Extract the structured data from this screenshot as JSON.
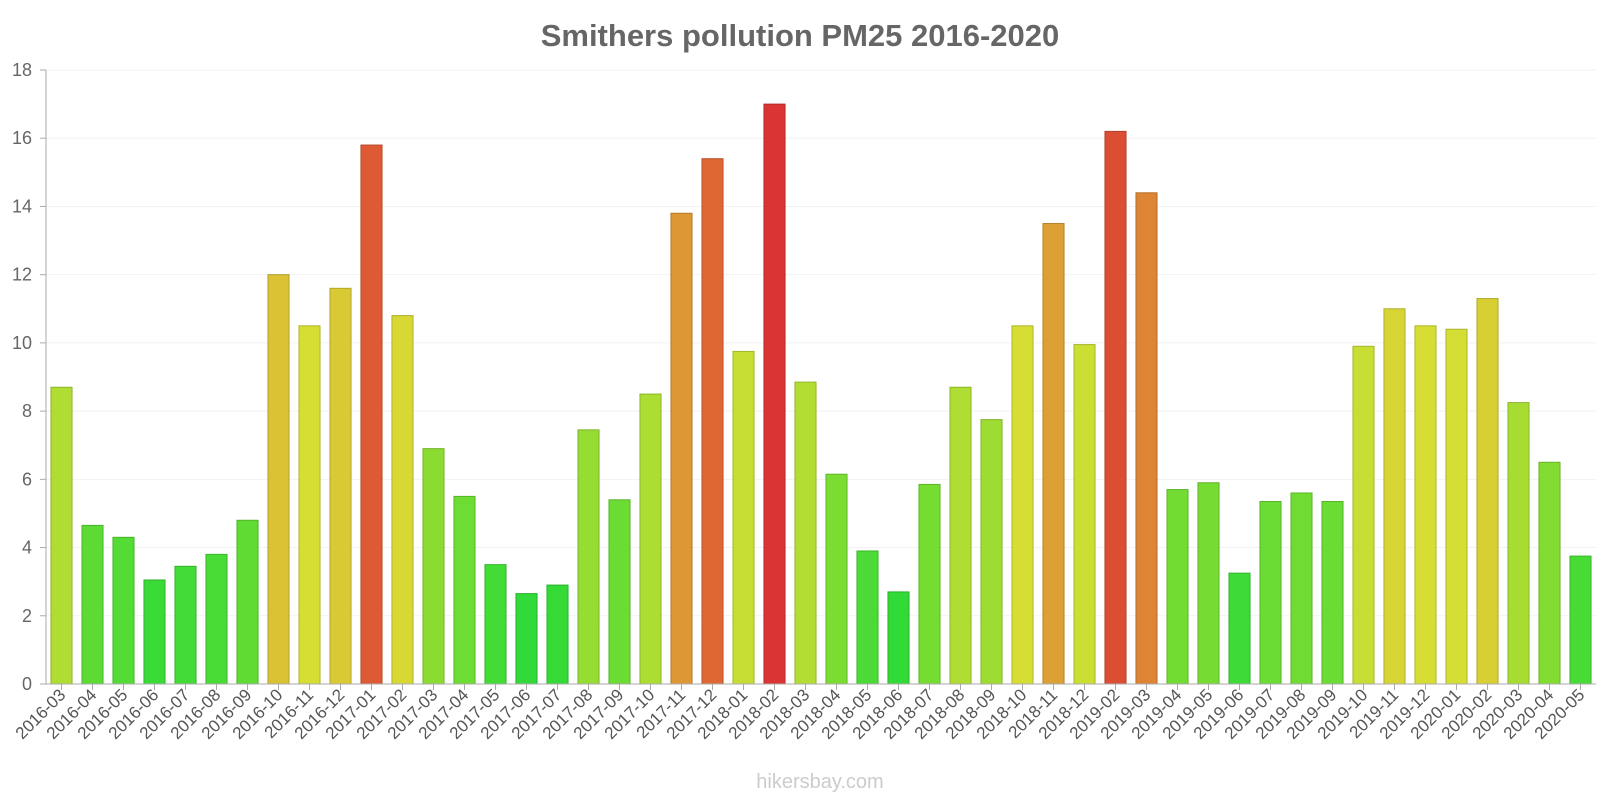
{
  "chart_data": {
    "type": "bar",
    "title": "Smithers pollution PM25 2016-2020",
    "xlabel": "",
    "ylabel": "",
    "ylim": [
      0,
      18
    ],
    "yticks": [
      0,
      2,
      4,
      6,
      8,
      10,
      12,
      14,
      16,
      18
    ],
    "grid": true,
    "categories": [
      "2016-03",
      "2016-04",
      "2016-05",
      "2016-06",
      "2016-07",
      "2016-08",
      "2016-09",
      "2016-10",
      "2016-11",
      "2016-12",
      "2017-01",
      "2017-02",
      "2017-03",
      "2017-04",
      "2017-05",
      "2017-06",
      "2017-07",
      "2017-08",
      "2017-09",
      "2017-10",
      "2017-11",
      "2017-12",
      "2018-01",
      "2018-02",
      "2018-03",
      "2018-04",
      "2018-05",
      "2018-06",
      "2018-07",
      "2018-08",
      "2018-09",
      "2018-10",
      "2018-11",
      "2018-12",
      "2019-02",
      "2019-03",
      "2019-04",
      "2019-05",
      "2019-06",
      "2019-07",
      "2019-08",
      "2019-09",
      "2019-10",
      "2019-11",
      "2019-12",
      "2020-01",
      "2020-02",
      "2020-03",
      "2020-04",
      "2020-05"
    ],
    "values": [
      8.7,
      4.65,
      4.3,
      3.05,
      3.45,
      3.8,
      4.8,
      12.0,
      10.5,
      11.6,
      15.8,
      10.8,
      6.9,
      5.5,
      3.5,
      2.65,
      2.9,
      7.45,
      5.4,
      8.5,
      13.8,
      15.4,
      9.75,
      17.0,
      8.85,
      6.15,
      3.9,
      2.7,
      5.85,
      8.7,
      7.75,
      10.5,
      13.5,
      9.95,
      16.2,
      14.4,
      5.7,
      5.9,
      3.25,
      5.35,
      5.6,
      5.35,
      9.9,
      11.0,
      10.5,
      10.4,
      11.3,
      8.25,
      6.5,
      3.75
    ]
  },
  "watermark": "hikersbay.com"
}
